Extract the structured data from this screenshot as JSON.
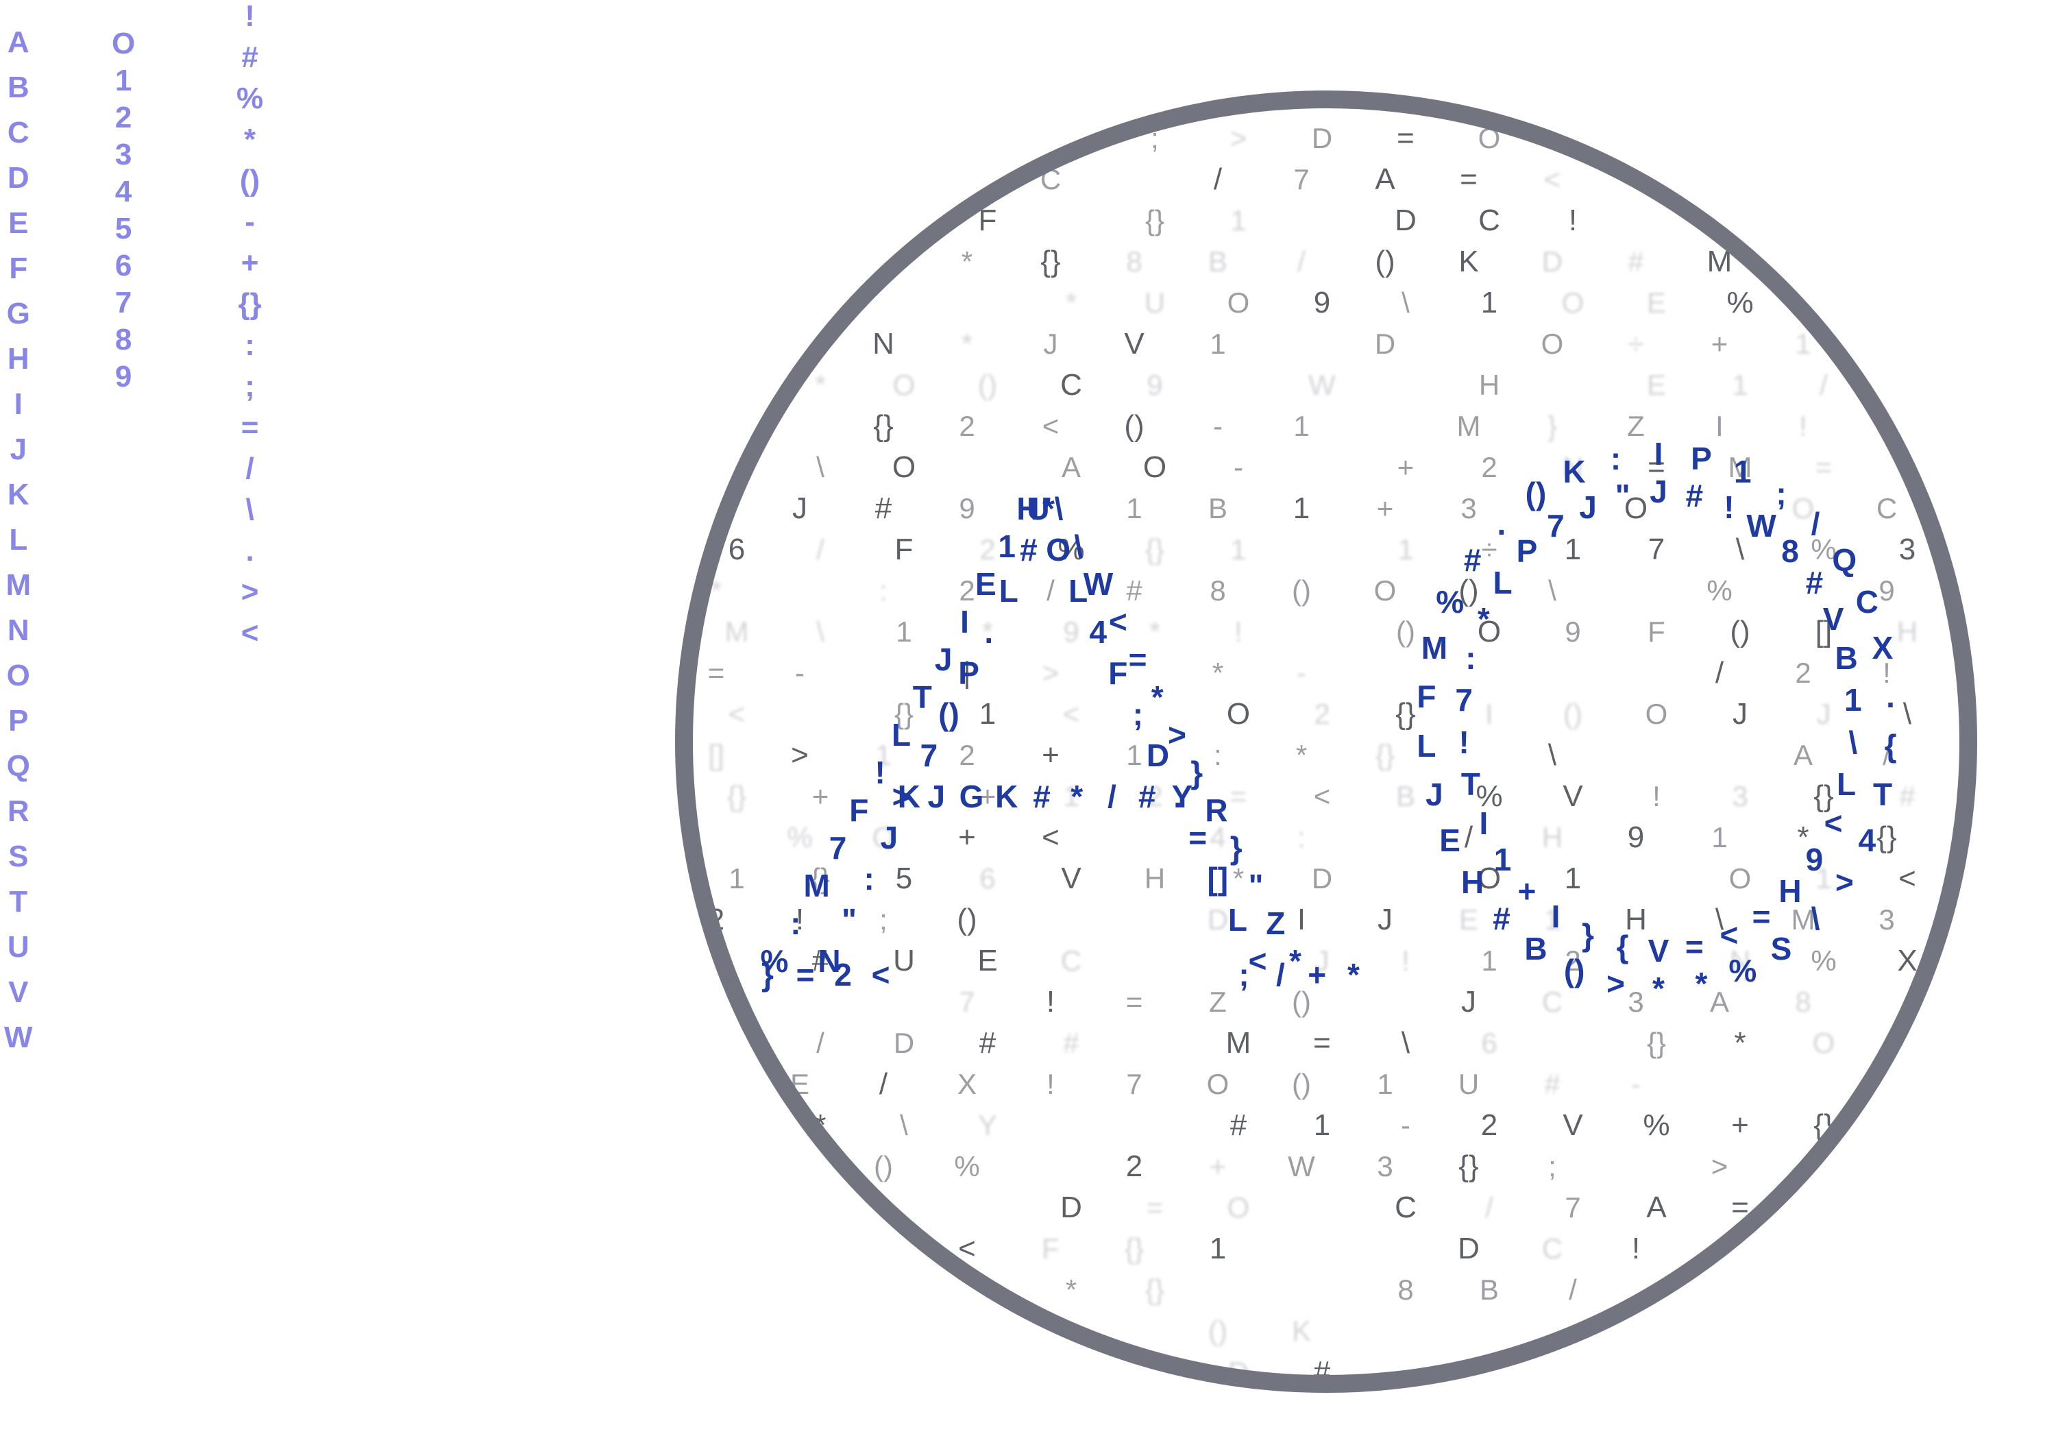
{
  "left_columns": {
    "letters": [
      "A",
      "B",
      "C",
      "D",
      "E",
      "F",
      "G",
      "H",
      "I",
      "J",
      "K",
      "L",
      "M",
      "N",
      "O",
      "P",
      "Q",
      "R",
      "S",
      "T",
      "U",
      "V",
      "W"
    ],
    "digits": [
      "O",
      "1",
      "2",
      "3",
      "4",
      "5",
      "6",
      "7",
      "8",
      "9"
    ],
    "symbols": [
      "!",
      "#",
      "%",
      "*",
      "()",
      "-",
      "+",
      "{}",
      ":",
      ";",
      "=",
      "/",
      "\\",
      ".",
      ">",
      "<"
    ]
  },
  "lens": {
    "glyph_colors": {
      "blue": "#1f3aa0",
      "dark": "#5e6067",
      "mid": "#9c9ea4",
      "faint": "#d4d5d9",
      "ring": "#72757f"
    },
    "blue_glyphs": [
      "H",
      "1",
      "E",
      "I",
      "J",
      "T",
      "L",
      "!",
      "F",
      "7",
      "M",
      ":",
      "%",
      "*",
      "#",
      "L",
      ".",
      "P",
      "()",
      "7",
      "K",
      "J",
      ":",
      "\"",
      "N",
      "\\",
      "\\",
      "W",
      "<",
      "=",
      "*",
      ">",
      "}",
      "R",
      "}",
      "\"",
      "Z",
      "*",
      "U",
      "O",
      "L",
      "4",
      "F",
      ";",
      "D",
      ".",
      "=",
      "[]",
      "L",
      "<",
      ">",
      "J",
      "G",
      "K",
      "#",
      "*",
      "/",
      "#",
      "Y",
      "}",
      "=",
      "2",
      "<",
      ";",
      "/",
      "+",
      "*",
      "I",
      "J",
      "P",
      "#",
      "1",
      "!",
      ";",
      "W",
      "/",
      "8",
      "Q",
      "#",
      "C",
      "V",
      "X",
      "B",
      ".",
      "1",
      "{",
      "\\",
      "T",
      "L",
      "4",
      "<",
      ">",
      "9",
      "\\",
      "H",
      "S",
      "=",
      "%",
      "<",
      "*",
      "=",
      "*",
      "V",
      ">",
      "{",
      "()",
      "}",
      "B",
      "I",
      "#",
      "+"
    ],
    "gray_glyphs": [
      ";",
      ">",
      "D",
      "=",
      "O",
      "C",
      "/",
      "7",
      "A",
      "=",
      "<",
      "F",
      "{}",
      "1",
      "D",
      "C",
      "!",
      "*",
      "{}",
      "8",
      "B",
      "/",
      "()",
      "K",
      "D",
      "#",
      "M",
      "*",
      "U",
      "O",
      "9",
      "\\",
      "1",
      "O",
      "E",
      "%",
      "N",
      "*",
      "J",
      "V",
      "1",
      "D",
      "O",
      "÷",
      "+",
      "1",
      "*",
      "O",
      "()",
      "C",
      "9",
      "W",
      "H",
      "E",
      "1",
      "/",
      "{}",
      "2",
      "<",
      "()",
      "-",
      "1",
      "M",
      "}",
      "Z",
      "I",
      "!",
      "\\",
      "O",
      "A",
      "O",
      "-",
      "+",
      "2",
      "N",
      "=",
      "M",
      "=",
      "J",
      "#",
      "9",
      "1",
      "B",
      "1",
      "+",
      "3",
      "O",
      "O",
      "C",
      "6",
      "/",
      "F",
      "2",
      "%",
      "{}",
      "1",
      "1",
      "÷",
      "1",
      "7",
      "\\",
      "%",
      "3",
      "*",
      ":",
      "2",
      "/",
      "#",
      "8",
      "()",
      "O",
      "()",
      "\\",
      "%",
      "9",
      "M",
      "\\",
      "1",
      "*",
      "9",
      "*",
      "!",
      "()",
      "O",
      "9",
      "F",
      "()",
      "[]",
      "H",
      "=",
      "-",
      "|",
      ">",
      "*",
      "-",
      "/",
      "2",
      "!",
      "<",
      "{}",
      "1",
      "<",
      "O",
      "2",
      "{}",
      "I",
      "()",
      "O",
      "J",
      "J",
      "\\",
      "[]",
      ">",
      "1",
      "2",
      "+",
      "1",
      ":",
      "*",
      "{}",
      "\\",
      "A",
      "/",
      "{}",
      "+",
      "-",
      "+",
      "1",
      "2",
      "=",
      "<",
      "B",
      "%",
      "V",
      "!",
      "3",
      "{}",
      "#",
      "%",
      "O",
      "+",
      "<",
      "4",
      ":",
      "/",
      "H",
      "9",
      "1",
      "*",
      "{}",
      "1",
      "{}",
      "5",
      "6",
      "V",
      "H",
      "*",
      "D",
      "O",
      "1",
      "O",
      "1",
      "<",
      "2",
      "!",
      ";",
      "()",
      "D",
      "I",
      "J",
      "E",
      "1",
      "H",
      "\\",
      "M",
      "3",
      "#",
      "U",
      "E",
      "C",
      "J",
      "!",
      "1",
      "2",
      "N",
      "%",
      "X",
      "7",
      "!",
      "=",
      "Z",
      "()",
      "J",
      "C",
      "3",
      "A",
      "8",
      "/",
      "D",
      "#",
      "#",
      "M",
      "=",
      "\\",
      "6",
      "{}",
      "*",
      "O",
      "E",
      "/",
      "X",
      "!",
      "7",
      "O",
      "()",
      "1",
      "U",
      "#",
      "-",
      "*",
      "\\",
      "Y",
      "#",
      "1",
      "-",
      "2",
      "V",
      "%",
      "+",
      "{}",
      "()",
      "%",
      "2",
      "+",
      "W",
      "3",
      "{}"
    ]
  }
}
